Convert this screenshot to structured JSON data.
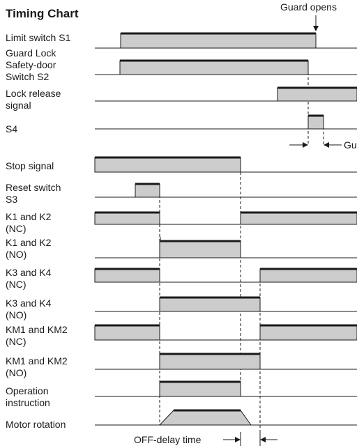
{
  "title": "Timing Chart",
  "annotations": {
    "guard_opens": "Guard opens",
    "off_delay": "OFF-delay time",
    "gu_cut": "Gu"
  },
  "colors": {
    "fill": "#cccccc",
    "line": "#1a1a1a"
  },
  "signals": [
    {
      "id": "s1",
      "lines": [
        "Limit switch S1"
      ]
    },
    {
      "id": "s2",
      "lines": [
        "Guard Lock",
        "Safety-door",
        "Switch S2"
      ]
    },
    {
      "id": "lock",
      "lines": [
        "Lock release",
        "signal"
      ]
    },
    {
      "id": "s4",
      "lines": [
        "S4"
      ]
    },
    {
      "id": "stop",
      "lines": [
        "Stop signal"
      ]
    },
    {
      "id": "s3",
      "lines": [
        "Reset switch",
        "S3"
      ]
    },
    {
      "id": "k12nc",
      "lines": [
        "K1 and K2",
        "(NC)"
      ]
    },
    {
      "id": "k12no",
      "lines": [
        "K1 and K2",
        "(NO)"
      ]
    },
    {
      "id": "k34nc",
      "lines": [
        "K3 and K4",
        "(NC)"
      ]
    },
    {
      "id": "k34no",
      "lines": [
        "K3 and K4",
        "(NO)"
      ]
    },
    {
      "id": "km12nc",
      "lines": [
        "KM1 and KM2",
        "(NC)"
      ]
    },
    {
      "id": "km12no",
      "lines": [
        "KM1 and KM2",
        "(NO)"
      ]
    },
    {
      "id": "op",
      "lines": [
        "Operation",
        "instruction"
      ]
    },
    {
      "id": "motor",
      "lines": [
        "Motor rotation"
      ]
    }
  ]
}
